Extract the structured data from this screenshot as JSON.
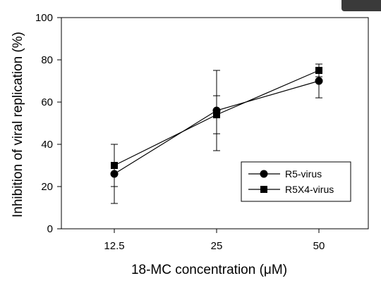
{
  "chart_data": {
    "type": "line",
    "title": "",
    "xlabel": "18-MC concentration (μM)",
    "ylabel": "Inhibition of viral replication (%)",
    "categories": [
      "12.5",
      "25",
      "50"
    ],
    "ylim": [
      0,
      100
    ],
    "yticks": [
      "0",
      "20",
      "40",
      "60",
      "80",
      "100"
    ],
    "grid": false,
    "legend_position": "bottom-right",
    "series": [
      {
        "name": "R5-virus",
        "marker": "circle",
        "values": [
          26,
          56,
          70
        ],
        "error": [
          14,
          19,
          8
        ],
        "color": "#000000"
      },
      {
        "name": "R5X4-virus",
        "marker": "square",
        "values": [
          30,
          54,
          75
        ],
        "error": [
          10,
          9,
          3
        ],
        "color": "#000000"
      }
    ]
  }
}
